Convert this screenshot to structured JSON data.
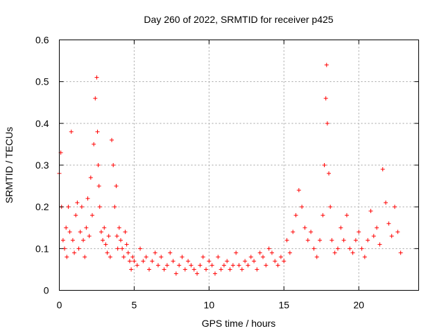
{
  "chart_data": {
    "type": "scatter",
    "title": "Day 260 of 2022, SRMTID for receiver p425",
    "xlabel": "GPS time / hours",
    "ylabel": "SRMTID / TECUs",
    "xlim": [
      0,
      24
    ],
    "ylim": [
      0,
      0.6
    ],
    "grid": true,
    "marker": "+",
    "marker_color": "#ff0000",
    "x_ticks": [
      0,
      5,
      10,
      15,
      20
    ],
    "x_tick_labels": [
      "0",
      "5",
      "10",
      "15",
      "20"
    ],
    "y_ticks": [
      0,
      0.1,
      0.2,
      0.3,
      0.4,
      0.5,
      0.6
    ],
    "y_tick_labels": [
      "0",
      "0.1",
      "0.2",
      "0.3",
      "0.4",
      "0.5",
      "0.6"
    ],
    "series": [
      {
        "name": "SRMTID",
        "color": "#ff0000",
        "x": [
          0.0,
          0.1,
          0.15,
          0.25,
          0.35,
          0.45,
          0.5,
          0.6,
          0.7,
          0.8,
          0.9,
          1.0,
          1.1,
          1.2,
          1.3,
          1.4,
          1.5,
          1.6,
          1.7,
          1.8,
          1.9,
          2.0,
          2.1,
          2.2,
          2.3,
          2.4,
          2.5,
          2.55,
          2.6,
          2.65,
          2.7,
          2.8,
          2.9,
          3.0,
          3.1,
          3.2,
          3.3,
          3.4,
          3.5,
          3.6,
          3.7,
          3.8,
          3.85,
          3.9,
          4.0,
          4.1,
          4.2,
          4.3,
          4.4,
          4.5,
          4.6,
          4.7,
          4.8,
          4.9,
          5.0,
          5.2,
          5.4,
          5.6,
          5.8,
          6.0,
          6.2,
          6.4,
          6.6,
          6.8,
          7.0,
          7.2,
          7.4,
          7.6,
          7.8,
          8.0,
          8.2,
          8.4,
          8.6,
          8.8,
          9.0,
          9.2,
          9.4,
          9.6,
          9.8,
          10.0,
          10.2,
          10.4,
          10.6,
          10.8,
          11.0,
          11.2,
          11.4,
          11.6,
          11.8,
          12.0,
          12.2,
          12.4,
          12.6,
          12.8,
          13.0,
          13.2,
          13.4,
          13.6,
          13.8,
          14.0,
          14.2,
          14.4,
          14.6,
          14.8,
          15.0,
          15.2,
          15.4,
          15.6,
          15.8,
          16.0,
          16.2,
          16.4,
          16.6,
          16.8,
          17.0,
          17.2,
          17.4,
          17.6,
          17.7,
          17.8,
          17.85,
          17.9,
          18.0,
          18.1,
          18.2,
          18.4,
          18.6,
          18.8,
          19.0,
          19.2,
          19.4,
          19.6,
          19.8,
          20.0,
          20.2,
          20.4,
          20.6,
          20.8,
          21.0,
          21.2,
          21.4,
          21.6,
          21.8,
          22.0,
          22.2,
          22.4,
          22.6,
          22.8
        ],
        "y": [
          0.28,
          0.33,
          0.2,
          0.12,
          0.1,
          0.15,
          0.08,
          0.2,
          0.14,
          0.38,
          0.12,
          0.09,
          0.18,
          0.21,
          0.1,
          0.14,
          0.2,
          0.12,
          0.08,
          0.15,
          0.22,
          0.13,
          0.27,
          0.18,
          0.35,
          0.46,
          0.51,
          0.38,
          0.3,
          0.25,
          0.2,
          0.14,
          0.12,
          0.15,
          0.11,
          0.09,
          0.13,
          0.08,
          0.36,
          0.3,
          0.2,
          0.25,
          0.13,
          0.1,
          0.15,
          0.12,
          0.1,
          0.08,
          0.14,
          0.11,
          0.09,
          0.07,
          0.05,
          0.08,
          0.07,
          0.06,
          0.1,
          0.07,
          0.08,
          0.05,
          0.07,
          0.09,
          0.06,
          0.08,
          0.05,
          0.06,
          0.09,
          0.07,
          0.04,
          0.06,
          0.08,
          0.05,
          0.07,
          0.06,
          0.05,
          0.04,
          0.06,
          0.08,
          0.05,
          0.07,
          0.06,
          0.04,
          0.08,
          0.05,
          0.06,
          0.07,
          0.05,
          0.06,
          0.09,
          0.06,
          0.05,
          0.07,
          0.06,
          0.08,
          0.07,
          0.05,
          0.09,
          0.08,
          0.06,
          0.1,
          0.09,
          0.07,
          0.06,
          0.08,
          0.07,
          0.12,
          0.09,
          0.14,
          0.18,
          0.24,
          0.2,
          0.15,
          0.12,
          0.14,
          0.1,
          0.08,
          0.12,
          0.18,
          0.3,
          0.46,
          0.54,
          0.4,
          0.28,
          0.2,
          0.12,
          0.09,
          0.1,
          0.15,
          0.12,
          0.18,
          0.1,
          0.09,
          0.12,
          0.14,
          0.1,
          0.08,
          0.12,
          0.19,
          0.13,
          0.15,
          0.11,
          0.29,
          0.21,
          0.16,
          0.13,
          0.2,
          0.14,
          0.09
        ]
      }
    ]
  }
}
